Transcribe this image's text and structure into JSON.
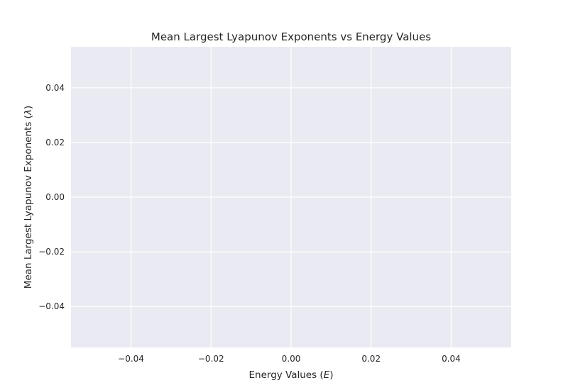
{
  "chart_data": {
    "type": "line",
    "title": "Mean Largest Lyapunov Exponents vs Energy Values",
    "xlabel": {
      "main": "Energy Values (",
      "symbol": "E",
      "suffix": ")"
    },
    "ylabel": {
      "main": "Mean Largest Lyapunov Exponents (",
      "symbol": "λ",
      "suffix": ")"
    },
    "xlim": [
      -0.055,
      0.055
    ],
    "ylim": [
      -0.055,
      0.055
    ],
    "x_ticks": [
      -0.04,
      -0.02,
      0.0,
      0.02,
      0.04
    ],
    "x_tick_labels": [
      "−0.04",
      "−0.02",
      "0.00",
      "0.02",
      "0.04"
    ],
    "y_ticks": [
      0.04,
      0.02,
      0.0,
      -0.02,
      -0.04
    ],
    "y_tick_labels": [
      "0.04",
      "0.02",
      "0.00",
      "−0.02",
      "−0.04"
    ],
    "grid": true,
    "style": {
      "plot_background": "#eaeaf2",
      "grid_color": "#ffffff",
      "text_color": "#262626"
    },
    "series": []
  }
}
